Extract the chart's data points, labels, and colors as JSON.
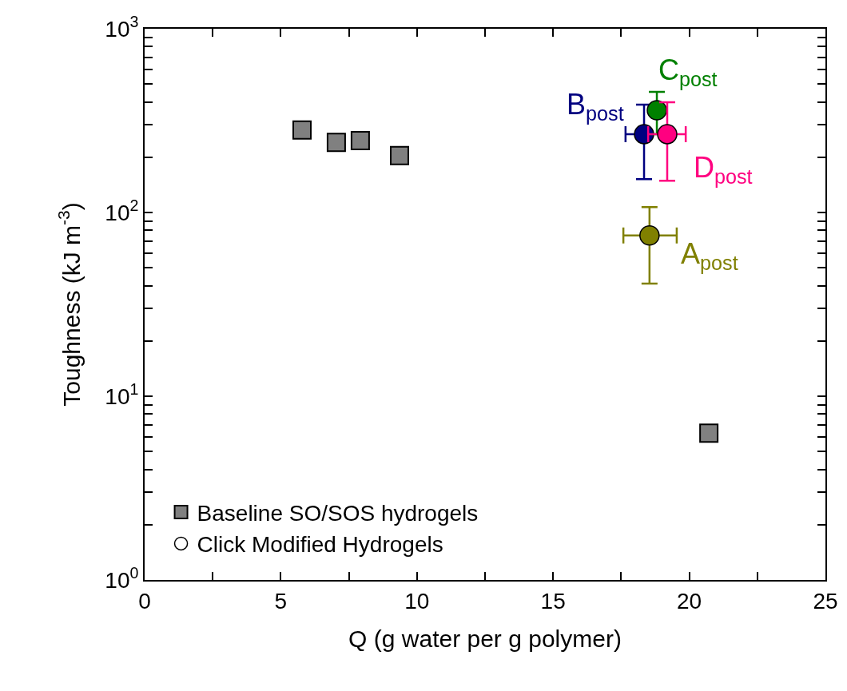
{
  "chart_data": {
    "type": "scatter",
    "xlabel": "Q (g water per g polymer)",
    "ylabel": "Toughness (kJ m$^{-3}$)",
    "log": "y",
    "grid": false,
    "legend": "bottom left",
    "xlim": [
      0,
      25
    ],
    "xticks": [
      0,
      {
        "value": 2.5,
        "label": null
      },
      5,
      {
        "value": 7.5,
        "label": null
      },
      10,
      {
        "value": 12.5,
        "label": null
      },
      15,
      {
        "value": 17.5,
        "label": null
      },
      20,
      {
        "value": 22.5,
        "label": null
      },
      25
    ],
    "ylim": [
      1,
      1000
    ],
    "yticks": [
      {
        "value": 1,
        "label": "10$^{0}$"
      },
      {
        "value": 2,
        "label": null
      },
      {
        "value": 3,
        "label": null
      },
      {
        "value": 4,
        "label": null
      },
      {
        "value": 5,
        "label": null
      },
      {
        "value": 6,
        "label": null
      },
      {
        "value": 7,
        "label": null
      },
      {
        "value": 8,
        "label": null
      },
      {
        "value": 9,
        "label": null
      },
      {
        "value": 10,
        "label": "10$^{1}$"
      },
      {
        "value": 20,
        "label": null
      },
      {
        "value": 30,
        "label": null
      },
      {
        "value": 40,
        "label": null
      },
      {
        "value": 50,
        "label": null
      },
      {
        "value": 60,
        "label": null
      },
      {
        "value": 70,
        "label": null
      },
      {
        "value": 80,
        "label": null
      },
      {
        "value": 90,
        "label": null
      },
      {
        "value": 100,
        "label": "10$^{2}$"
      },
      {
        "value": 200,
        "label": null
      },
      {
        "value": 300,
        "label": null
      },
      {
        "value": 400,
        "label": null
      },
      {
        "value": 500,
        "label": null
      },
      {
        "value": 600,
        "label": null
      },
      {
        "value": 700,
        "label": null
      },
      {
        "value": 800,
        "label": null
      },
      {
        "value": 900,
        "label": null
      },
      {
        "value": 1000,
        "label": "10$^{3}$"
      }
    ],
    "series": [
      {
        "name": "Baseline SO/SOS hydrogels",
        "color": "#808080",
        "marker": "square",
        "x": [
          5.78,
          7.04,
          7.92,
          9.36,
          20.72
        ],
        "values": [
          281,
          241,
          246,
          204,
          6.3
        ]
      },
      {
        "name": "Click Modified Hydrogels",
        "color": "#ffffff",
        "marker": "circle",
        "colors": [
          "#808000",
          "#000080",
          "#008000",
          "#ff0080"
        ],
        "x": [
          18.54,
          18.34,
          18.81,
          19.19
        ],
        "values": [
          75,
          267,
          360,
          267
        ],
        "errors": [
          [
            41,
            107
          ],
          [
            152,
            386
          ],
          [
            267,
            454
          ],
          [
            149,
            398
          ]
        ],
        "xerrors": [
          [
            17.58,
            19.54
          ],
          [
            17.66,
            18.34
          ],
          null,
          [
            18.49,
            19.87
          ]
        ]
      }
    ],
    "annotations": [
      {
        "text": "A$_{post}$",
        "x": 18.54,
        "y": 75
      },
      {
        "text": "B$_{post}$",
        "x": 18.34,
        "y": 267
      },
      {
        "text": "C$_{post}$",
        "x": 18.81,
        "y": 360
      },
      {
        "text": "D$_{post}$",
        "x": 19.19,
        "y": 267
      }
    ]
  }
}
